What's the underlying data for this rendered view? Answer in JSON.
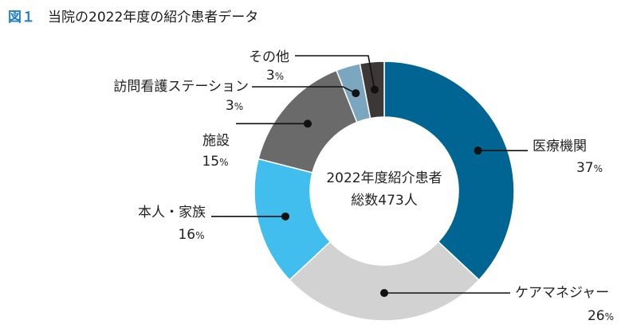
{
  "figure": {
    "label": "図１",
    "title": "当院の2022年度の紹介患者データ"
  },
  "chart_data": {
    "type": "pie",
    "donut": true,
    "title": "当院の2022年度の紹介患者データ",
    "center_label": [
      "2022年度紹介患者",
      "総数473人"
    ],
    "unit": "%",
    "slices": [
      {
        "name": "医療機関",
        "value": 37,
        "color": "#006593"
      },
      {
        "name": "ケアマネジャー",
        "value": 26,
        "color": "#d2d2d2"
      },
      {
        "name": "本人・家族",
        "value": 16,
        "color": "#41bdee"
      },
      {
        "name": "施設",
        "value": 15,
        "color": "#6a6a6a"
      },
      {
        "name": "訪問看護ステーション",
        "value": 3,
        "color": "#7ba6bf"
      },
      {
        "name": "その他",
        "value": 3,
        "color": "#3d3838"
      }
    ]
  }
}
